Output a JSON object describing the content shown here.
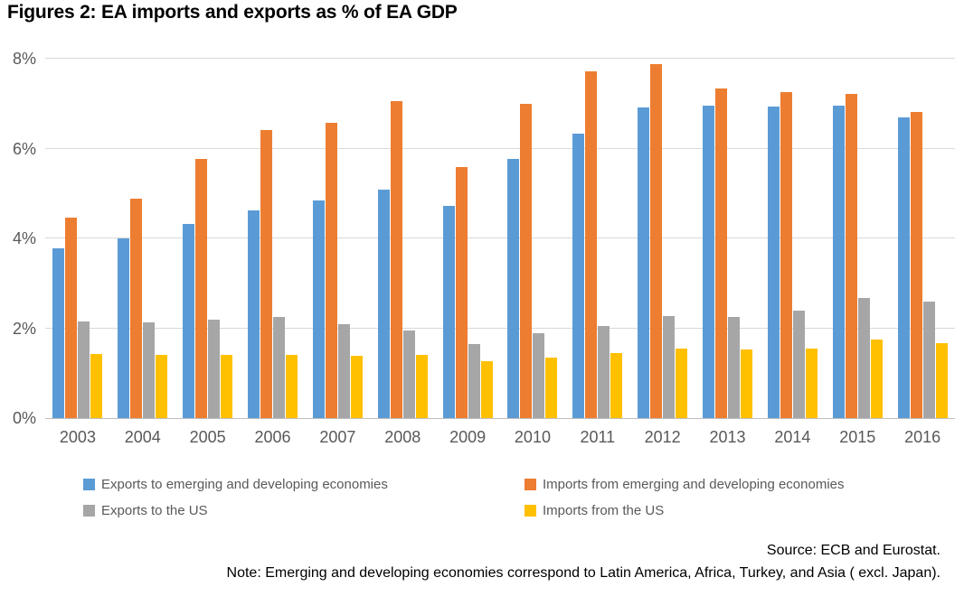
{
  "chart_data": {
    "type": "bar",
    "title": "Figures 2: EA imports and exports as % of EA GDP",
    "categories": [
      2003,
      2004,
      2005,
      2006,
      2007,
      2008,
      2009,
      2010,
      2011,
      2012,
      2013,
      2014,
      2015,
      2016
    ],
    "series": [
      {
        "name": "Exports to emerging and developing economies",
        "color": "#5B9BD5",
        "values": [
          3.78,
          4.01,
          4.33,
          4.62,
          4.84,
          5.08,
          4.72,
          5.77,
          6.33,
          6.91,
          6.96,
          6.93,
          6.95,
          6.69
        ]
      },
      {
        "name": "Imports from emerging and developing economies",
        "color": "#ED7D31",
        "values": [
          4.47,
          4.88,
          5.76,
          6.41,
          6.57,
          7.06,
          5.59,
          6.99,
          7.71,
          7.88,
          7.33,
          7.26,
          7.21,
          6.81
        ]
      },
      {
        "name": "Exports to the US",
        "color": "#A6A6A6",
        "values": [
          2.15,
          2.13,
          2.2,
          2.25,
          2.09,
          1.96,
          1.64,
          1.89,
          2.06,
          2.28,
          2.26,
          2.39,
          2.67,
          2.59
        ]
      },
      {
        "name": "Imports from the US",
        "color": "#FFC000",
        "values": [
          1.42,
          1.4,
          1.41,
          1.41,
          1.39,
          1.41,
          1.26,
          1.35,
          1.45,
          1.55,
          1.52,
          1.55,
          1.75,
          1.67
        ]
      }
    ],
    "ylim": [
      0,
      8
    ],
    "yticks": [
      "0%",
      "2%",
      "4%",
      "6%",
      "8%"
    ],
    "ytick_values": [
      0,
      2,
      4,
      6,
      8
    ],
    "xlabel": "",
    "ylabel": "",
    "grid": "horizontal",
    "legend_position": "bottom"
  },
  "footer": {
    "source": "Source: ECB and Eurostat.",
    "note": "Note: Emerging and developing economies correspond to Latin America, Africa, Turkey, and Asia ( excl. Japan)."
  }
}
